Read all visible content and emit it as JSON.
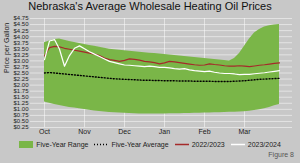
{
  "chart_data": {
    "type": "line",
    "title": "Nebraska's Average Wholesale Heating Oil Prices",
    "y_label": "Price per Gallon",
    "categories": [
      "Oct",
      null,
      null,
      null,
      null,
      null,
      null,
      null,
      "Nov",
      null,
      null,
      null,
      null,
      null,
      null,
      null,
      "Dec",
      null,
      null,
      null,
      null,
      null,
      null,
      null,
      "Jan",
      null,
      null,
      null,
      null,
      null,
      null,
      null,
      "Feb",
      null,
      null,
      null,
      null,
      null,
      null,
      null,
      "Mar",
      null,
      null,
      null,
      null,
      null,
      null,
      null
    ],
    "series": [
      {
        "name": "Five-Year Range",
        "type": "area",
        "color": "#7ab648",
        "lower": [
          1.3,
          1.25,
          1.2,
          1.16,
          1.12,
          1.08,
          1.05,
          1.02,
          0.99,
          0.96,
          0.93,
          0.91,
          0.89,
          0.87,
          0.86,
          0.85,
          0.84,
          0.83,
          0.82,
          0.81,
          0.81,
          0.81,
          0.81,
          0.81,
          0.81,
          0.82,
          0.82,
          0.82,
          0.83,
          0.83,
          0.84,
          0.84,
          0.85,
          0.85,
          0.86,
          0.86,
          0.87,
          0.88,
          0.88,
          0.89,
          0.9,
          0.92,
          0.95,
          0.98,
          1.02,
          1.08,
          1.15,
          1.2
        ],
        "upper": [
          3.75,
          3.82,
          3.88,
          3.9,
          3.85,
          3.8,
          3.76,
          3.72,
          3.68,
          3.64,
          3.6,
          3.56,
          3.52,
          3.48,
          3.46,
          3.44,
          3.42,
          3.4,
          3.38,
          3.36,
          3.34,
          3.32,
          3.3,
          3.28,
          3.26,
          3.24,
          3.22,
          3.2,
          3.18,
          3.16,
          3.14,
          3.12,
          3.1,
          3.08,
          3.06,
          3.04,
          3.02,
          3.0,
          3.1,
          3.3,
          3.6,
          3.9,
          4.15,
          4.3,
          4.4,
          4.45,
          4.48,
          4.5
        ]
      },
      {
        "name": "Five-Year Average",
        "type": "line",
        "color": "#000000",
        "line_style": "dotted",
        "values": [
          2.5,
          2.52,
          2.5,
          2.48,
          2.46,
          2.44,
          2.42,
          2.4,
          2.38,
          2.36,
          2.34,
          2.32,
          2.3,
          2.28,
          2.26,
          2.25,
          2.24,
          2.23,
          2.22,
          2.21,
          2.2,
          2.2,
          2.19,
          2.19,
          2.18,
          2.18,
          2.18,
          2.17,
          2.17,
          2.17,
          2.16,
          2.16,
          2.16,
          2.16,
          2.15,
          2.15,
          2.15,
          2.15,
          2.16,
          2.17,
          2.18,
          2.2,
          2.22,
          2.24,
          2.25,
          2.26,
          2.27,
          2.28
        ]
      },
      {
        "name": "2022/2023",
        "type": "line",
        "color": "#a52a2a",
        "line_style": "solid",
        "values": [
          3.2,
          3.55,
          3.6,
          3.58,
          3.52,
          3.48,
          3.44,
          3.4,
          3.36,
          3.32,
          3.28,
          3.22,
          3.12,
          3.05,
          3.02,
          2.98,
          3.02,
          3.08,
          3.06,
          3.03,
          2.98,
          2.96,
          2.93,
          2.88,
          2.92,
          2.98,
          2.96,
          2.93,
          2.9,
          2.87,
          2.84,
          2.82,
          2.83,
          2.88,
          2.85,
          2.83,
          2.8,
          2.78,
          2.78,
          2.8,
          2.78,
          2.76,
          2.79,
          2.82,
          2.84,
          2.87,
          2.9,
          2.92
        ]
      },
      {
        "name": "2023/2024",
        "type": "line",
        "color": "#ffffff",
        "line_style": "solid",
        "values": [
          3.05,
          3.82,
          3.88,
          3.48,
          2.78,
          3.22,
          3.52,
          3.62,
          3.5,
          3.38,
          3.28,
          3.18,
          3.08,
          2.98,
          2.93,
          2.88,
          2.83,
          2.82,
          2.8,
          2.78,
          2.76,
          2.78,
          2.76,
          2.73,
          2.73,
          2.71,
          2.68,
          2.66,
          2.68,
          2.63,
          2.6,
          2.58,
          2.56,
          2.58,
          2.53,
          2.5,
          2.48,
          2.48,
          2.46,
          2.43,
          2.44,
          2.44,
          2.47,
          2.49,
          2.51,
          2.54,
          2.57,
          2.6
        ]
      }
    ],
    "ylim": [
      0.25,
      4.75
    ],
    "yticks": [
      {
        "value": 0.25,
        "label": "$0.25"
      },
      {
        "value": 0.5,
        "label": "$0.50"
      },
      {
        "value": 0.75,
        "label": "$0.75"
      },
      {
        "value": 1.0,
        "label": "$1.00"
      },
      {
        "value": 1.25,
        "label": "$1.25"
      },
      {
        "value": 1.5,
        "label": "$1.50"
      },
      {
        "value": 1.75,
        "label": "$1.75"
      },
      {
        "value": 2.0,
        "label": "$2.00"
      },
      {
        "value": 2.25,
        "label": "$2.25"
      },
      {
        "value": 2.5,
        "label": "$2.50"
      },
      {
        "value": 2.75,
        "label": "$2.75"
      },
      {
        "value": 3.0,
        "label": "$3.00"
      },
      {
        "value": 3.25,
        "label": "$3.25"
      },
      {
        "value": 3.5,
        "label": "$3.50"
      },
      {
        "value": 3.75,
        "label": "$3.75"
      },
      {
        "value": 4.0,
        "label": "$4.00"
      },
      {
        "value": 4.25,
        "label": "$4.25"
      },
      {
        "value": 4.5,
        "label": "$4.50"
      },
      {
        "value": 4.75,
        "label": "$4.75"
      }
    ],
    "grid": true,
    "legend": "bottom",
    "annotations": [
      "Figure 8"
    ]
  }
}
